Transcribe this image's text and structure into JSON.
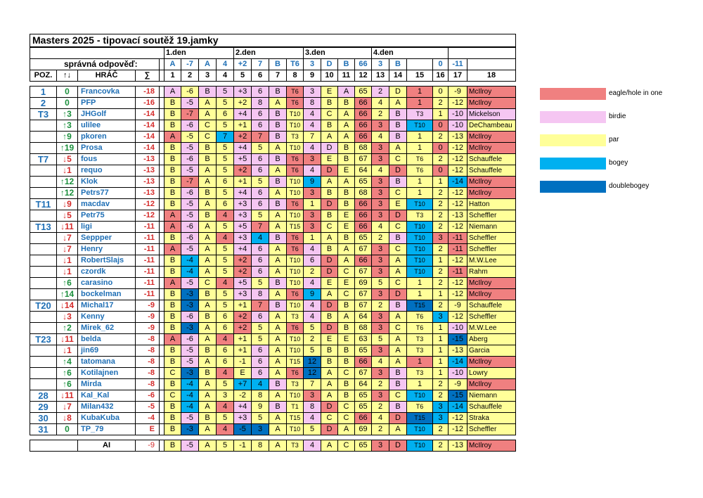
{
  "title": "Masters 2025 - tipovací soutěž 19.jamky",
  "days": [
    "1.den",
    "2.den",
    "3.den",
    "4.den"
  ],
  "answers_label": "správná odpověď:",
  "answers": [
    "A",
    "-7",
    "A",
    "4",
    "+2",
    "7",
    "B",
    "T6",
    "3",
    "D",
    "B",
    "66",
    "3",
    "B",
    "",
    "0",
    "-11",
    ""
  ],
  "headers": {
    "pos": "POZ.",
    "chg": "↑↓",
    "name": "HRÁČ",
    "sum": "∑",
    "cols": [
      "1",
      "2",
      "3",
      "4",
      "5",
      "6",
      "7",
      "8",
      "9",
      "10",
      "11",
      "12",
      "13",
      "14",
      "15",
      "16",
      "17",
      "18"
    ]
  },
  "colors": {
    "eagle": "#f08080",
    "birdie": "#f5c6f2",
    "par": "#ffff99",
    "bogey": "#00b0f0",
    "doublebogey": "#0070c0"
  },
  "legend": [
    {
      "key": "eagle",
      "label": "eagle/hole in one"
    },
    {
      "key": "birdie",
      "label": "birdie"
    },
    {
      "key": "par",
      "label": "par"
    },
    {
      "key": "bogey",
      "label": "bogey"
    },
    {
      "key": "doublebogey",
      "label": "doublebogey"
    }
  ],
  "rows": [
    {
      "pos": "1",
      "dir": "zero",
      "chg": "0",
      "name": "Francovka",
      "total": "-18",
      "cells": [
        "A",
        "-6",
        "B",
        "5",
        "+3",
        "6",
        "B",
        "T6",
        "3",
        "E",
        "A",
        "65",
        "2",
        "D",
        "1",
        "0",
        "-9",
        "McIlroy"
      ],
      "cls": "BPBBBBBEBPBPBPEPPE"
    },
    {
      "pos": "2",
      "dir": "zero",
      "chg": "0",
      "name": "PFP",
      "total": "-16",
      "cells": [
        "B",
        "-5",
        "A",
        "5",
        "+2",
        "8",
        "A",
        "T6",
        "8",
        "B",
        "B",
        "66",
        "4",
        "A",
        "1",
        "2",
        "-12",
        "McIlroy"
      ],
      "cls": "PBPPPBPEBPPEPPEPPE"
    },
    {
      "pos": "T3",
      "dir": "up",
      "chg": "↑3",
      "name": "JHGolf",
      "total": "-14",
      "cells": [
        "B",
        "-7",
        "A",
        "6",
        "+4",
        "6",
        "B",
        "T10",
        "4",
        "C",
        "A",
        "66",
        "2",
        "B",
        "T3",
        "1",
        "-10",
        "Mickelson"
      ],
      "cls": "PEPPBBBPBPPEPBBPBB"
    },
    {
      "pos": "",
      "dir": "up",
      "chg": "↑3",
      "name": "ulilee",
      "total": "-14",
      "cells": [
        "B",
        "-6",
        "C",
        "5",
        "+1",
        "6",
        "B",
        "T10",
        "4",
        "B",
        "A",
        "66",
        "3",
        "B",
        "T10",
        "0",
        "-10",
        "DeChambeau"
      ],
      "cls": "PBPPPBBPBPPEEBOEBP"
    },
    {
      "pos": "",
      "dir": "up",
      "chg": "↑9",
      "name": "pkoren",
      "total": "-14",
      "cells": [
        "A",
        "-5",
        "C",
        "7",
        "+2",
        "7",
        "B",
        "T3",
        "7",
        "A",
        "A",
        "66",
        "4",
        "B",
        "1",
        "2",
        "-13",
        "McIlroy"
      ],
      "cls": "EPPOEEBPPPPEPBPPPE"
    },
    {
      "pos": "",
      "dir": "up",
      "chg": "↑19",
      "name": "Prosa",
      "total": "-14",
      "cells": [
        "B",
        "-5",
        "B",
        "5",
        "+4",
        "5",
        "A",
        "T10",
        "4",
        "D",
        "B",
        "68",
        "3",
        "A",
        "1",
        "0",
        "-12",
        "McIlroy"
      ],
      "cls": "PBPPBPPPBBPPEPPEPE"
    },
    {
      "pos": "T7",
      "dir": "dn",
      "chg": "↓5",
      "name": "fous",
      "total": "-13",
      "cells": [
        "B",
        "-6",
        "B",
        "5",
        "+5",
        "6",
        "B",
        "T6",
        "3",
        "E",
        "B",
        "67",
        "3",
        "C",
        "T6",
        "2",
        "-12",
        "Schauffele"
      ],
      "cls": "PBPPBBBEEPPPEPPPPP"
    },
    {
      "pos": "",
      "dir": "dn",
      "chg": "↓1",
      "name": "requo",
      "total": "-13",
      "cells": [
        "B",
        "-5",
        "A",
        "5",
        "+2",
        "6",
        "A",
        "T6",
        "4",
        "D",
        "E",
        "64",
        "4",
        "D",
        "T6",
        "0",
        "-12",
        "Schauffele"
      ],
      "cls": "PBPPEBPEBEPPPEPEPP"
    },
    {
      "pos": "",
      "dir": "up",
      "chg": "↑12",
      "name": "Klok",
      "total": "-13",
      "cells": [
        "B",
        "-7",
        "A",
        "6",
        "+1",
        "5",
        "B",
        "T10",
        "9",
        "A",
        "A",
        "65",
        "3",
        "B",
        "1",
        "1",
        "-14",
        "McIlroy"
      ],
      "cls": "PEPPPPBPOPPPEBPPOE"
    },
    {
      "pos": "",
      "dir": "up",
      "chg": "↑12",
      "name": "Petrs77",
      "total": "-13",
      "cells": [
        "B",
        "-6",
        "B",
        "5",
        "+4",
        "6",
        "A",
        "T10",
        "3",
        "B",
        "B",
        "68",
        "3",
        "C",
        "1",
        "2",
        "-12",
        "McIlroy"
      ],
      "cls": "PBPPBBPPEPPPEPPPPE"
    },
    {
      "pos": "T11",
      "dir": "dn",
      "chg": "↓9",
      "name": "macdav",
      "total": "-12",
      "cells": [
        "B",
        "-5",
        "A",
        "6",
        "+3",
        "6",
        "B",
        "T6",
        "1",
        "D",
        "B",
        "66",
        "3",
        "E",
        "T10",
        "2",
        "-12",
        "Hatton"
      ],
      "cls": "PBPPBBBEPEPEEPOPPP"
    },
    {
      "pos": "",
      "dir": "dn",
      "chg": "↓5",
      "name": "Petr75",
      "total": "-12",
      "cells": [
        "A",
        "-5",
        "B",
        "4",
        "+3",
        "5",
        "A",
        "T10",
        "3",
        "B",
        "E",
        "66",
        "3",
        "D",
        "T3",
        "2",
        "-13",
        "Scheffler"
      ],
      "cls": "EBPEBPPPEPPEEEPPPP"
    },
    {
      "pos": "T13",
      "dir": "dn",
      "chg": "↓11",
      "name": "ligi",
      "total": "-11",
      "cells": [
        "A",
        "-6",
        "A",
        "5",
        "+5",
        "7",
        "A",
        "T15",
        "3",
        "C",
        "E",
        "66",
        "4",
        "C",
        "T10",
        "2",
        "-12",
        "Niemann"
      ],
      "cls": "EBPPBEPPEPPEPPOPPP"
    },
    {
      "pos": "",
      "dir": "dn",
      "chg": "↓7",
      "name": "Seppper",
      "total": "-11",
      "cells": [
        "B",
        "-6",
        "A",
        "4",
        "+3",
        "4",
        "B",
        "T6",
        "1",
        "A",
        "B",
        "65",
        "2",
        "B",
        "T10",
        "3",
        "-11",
        "Scheffler"
      ],
      "cls": "PBPEBOBEPPPPPBOEEP"
    },
    {
      "pos": "",
      "dir": "dn",
      "chg": "↓7",
      "name": "Henry",
      "total": "-11",
      "cells": [
        "A",
        "-5",
        "A",
        "5",
        "+4",
        "6",
        "A",
        "T6",
        "4",
        "B",
        "A",
        "67",
        "3",
        "C",
        "T10",
        "2",
        "-11",
        "Scheffler"
      ],
      "cls": "EBPPBBPEBPPPEPOPEP"
    },
    {
      "pos": "",
      "dir": "dn",
      "chg": "↓1",
      "name": "RobertSlajs",
      "total": "-11",
      "cells": [
        "B",
        "-4",
        "A",
        "5",
        "+2",
        "6",
        "A",
        "T10",
        "6",
        "D",
        "A",
        "66",
        "3",
        "A",
        "T10",
        "1",
        "-12",
        "M.W.Lee"
      ],
      "cls": "POPPEBPPBEPEEPOPPP"
    },
    {
      "pos": "",
      "dir": "dn",
      "chg": "↓1",
      "name": "czordk",
      "total": "-11",
      "cells": [
        "B",
        "-4",
        "A",
        "5",
        "+2",
        "6",
        "A",
        "T10",
        "2",
        "D",
        "C",
        "67",
        "3",
        "A",
        "T10",
        "2",
        "-11",
        "Rahm"
      ],
      "cls": "POPPEBPPPEPPEPOPEP"
    },
    {
      "pos": "",
      "dir": "up",
      "chg": "↑6",
      "name": "carasino",
      "total": "-11",
      "cells": [
        "A",
        "-5",
        "C",
        "4",
        "+5",
        "5",
        "B",
        "T10",
        "4",
        "E",
        "E",
        "69",
        "5",
        "C",
        "1",
        "2",
        "-12",
        "McIlroy"
      ],
      "cls": "EBPEBPBPBPPPPPPPPE"
    },
    {
      "pos": "",
      "dir": "up",
      "chg": "↑14",
      "name": "bockelman",
      "total": "-11",
      "cells": [
        "B",
        "-3",
        "B",
        "5",
        "+3",
        "8",
        "A",
        "T6",
        "9",
        "A",
        "C",
        "67",
        "3",
        "D",
        "1",
        "1",
        "-12",
        "McIlroy"
      ],
      "cls": "PDPPBBPEOPPPEEPPPE"
    },
    {
      "pos": "T20",
      "dir": "dn",
      "chg": "↓14",
      "name": "Michal17",
      "total": "-9",
      "cells": [
        "B",
        "-3",
        "A",
        "5",
        "+1",
        "7",
        "B",
        "T10",
        "4",
        "D",
        "B",
        "67",
        "2",
        "B",
        "T15",
        "2",
        "-9",
        "Schauffele"
      ],
      "cls": "PDPPPEBPBEPPPBDPPP"
    },
    {
      "pos": "",
      "dir": "dn",
      "chg": "↓3",
      "name": "Kenny",
      "total": "-9",
      "cells": [
        "B",
        "-6",
        "B",
        "6",
        "+2",
        "6",
        "A",
        "T3",
        "4",
        "B",
        "A",
        "64",
        "3",
        "A",
        "T6",
        "3",
        "-12",
        "Scheffler"
      ],
      "cls": "PBPPEBPPBPPPEPPOPP"
    },
    {
      "pos": "",
      "dir": "up",
      "chg": "↑2",
      "name": "Mirek_62",
      "total": "-9",
      "cells": [
        "B",
        "-3",
        "A",
        "6",
        "+2",
        "5",
        "A",
        "T6",
        "5",
        "D",
        "B",
        "68",
        "3",
        "C",
        "T6",
        "1",
        "-10",
        "M.W.Lee"
      ],
      "cls": "PDPPEPPEPEPPEPPPBP"
    },
    {
      "pos": "T23",
      "dir": "dn",
      "chg": "↓11",
      "name": "belda",
      "total": "-8",
      "cells": [
        "A",
        "-6",
        "A",
        "4",
        "+1",
        "5",
        "A",
        "T10",
        "2",
        "E",
        "E",
        "63",
        "5",
        "A",
        "T3",
        "1",
        "-15",
        "Aberg"
      ],
      "cls": "EBPEPPPPPPPPPPPPDP"
    },
    {
      "pos": "",
      "dir": "dn",
      "chg": "↓1",
      "name": "jin69",
      "total": "-8",
      "cells": [
        "B",
        "-5",
        "B",
        "6",
        "+1",
        "6",
        "A",
        "T10",
        "5",
        "B",
        "B",
        "65",
        "3",
        "A",
        "T3",
        "1",
        "-13",
        "Garcia"
      ],
      "cls": "PBPPPBPPPPPPEPPPPP"
    },
    {
      "pos": "",
      "dir": "up",
      "chg": "↑4",
      "name": "tatomana",
      "total": "-8",
      "cells": [
        "B",
        "-5",
        "A",
        "6",
        "-1",
        "6",
        "A",
        "T15",
        "12",
        "B",
        "B",
        "66",
        "4",
        "A",
        "1",
        "1",
        "-14",
        "McIlroy"
      ],
      "cls": "PBPPPBPPDPPEPPEPOE"
    },
    {
      "pos": "",
      "dir": "up",
      "chg": "↑6",
      "name": "Kotilajnen",
      "total": "-8",
      "cells": [
        "C",
        "-3",
        "B",
        "4",
        "E",
        "6",
        "A",
        "T6",
        "12",
        "A",
        "C",
        "67",
        "3",
        "B",
        "T3",
        "1",
        "-10",
        "Lowry"
      ],
      "cls": "PDPEPBPEDPPPEBPPBP"
    },
    {
      "pos": "",
      "dir": "up",
      "chg": "↑6",
      "name": "Mirda",
      "total": "-8",
      "cells": [
        "B",
        "-4",
        "A",
        "5",
        "+7",
        "4",
        "B",
        "T3",
        "7",
        "A",
        "B",
        "64",
        "2",
        "B",
        "1",
        "2",
        "-9",
        "McIlroy"
      ],
      "cls": "POPPOOBPPPPPPBPPPE"
    },
    {
      "pos": "28",
      "dir": "dn",
      "chg": "↓11",
      "name": "Kal_Kal",
      "total": "-6",
      "cells": [
        "C",
        "-4",
        "A",
        "3",
        "-2",
        "8",
        "A",
        "T10",
        "3",
        "A",
        "B",
        "65",
        "3",
        "C",
        "T10",
        "2",
        "-15",
        "Niemann"
      ],
      "cls": "POPPPPPPEPPPEPOPDP"
    },
    {
      "pos": "29",
      "dir": "dn",
      "chg": "↓7",
      "name": "Milan432",
      "total": "-5",
      "cells": [
        "B",
        "-4",
        "A",
        "4",
        "+4",
        "9",
        "B",
        "T1",
        "8",
        "D",
        "C",
        "65",
        "2",
        "B",
        "T6",
        "3",
        "-14",
        "Schauffele"
      ],
      "cls": "POPEBPBPBEPPPBPOOP"
    },
    {
      "pos": "30",
      "dir": "dn",
      "chg": "↓8",
      "name": "KubaKuba",
      "total": "-4",
      "cells": [
        "B",
        "-5",
        "B",
        "5",
        "+3",
        "5",
        "A",
        "T15",
        "4",
        "C",
        "C",
        "66",
        "4",
        "D",
        "T15",
        "3",
        "-12",
        "Straka"
      ],
      "cls": "PBPPBPPPBPPEPEDOPP"
    },
    {
      "pos": "31",
      "dir": "zero",
      "chg": "0",
      "name": "TP_79",
      "total": "E",
      "cells": [
        "B",
        "-3",
        "A",
        "4",
        "-5",
        "3",
        "A",
        "T10",
        "5",
        "D",
        "A",
        "69",
        "2",
        "A",
        "T10",
        "2",
        "-12",
        "Scheffler"
      ],
      "cls": "PDPEDDPPPEPPPPOPPP"
    }
  ],
  "ai": {
    "name": "AI",
    "total": "-9",
    "cells": [
      "B",
      "-5",
      "A",
      "5",
      "-1",
      "8",
      "A",
      "T3",
      "4",
      "A",
      "C",
      "65",
      "3",
      "D",
      "T10",
      "2",
      "-13",
      "McIlroy"
    ],
    "cls": "PBPPPPPPBPPPEEOPPE"
  }
}
